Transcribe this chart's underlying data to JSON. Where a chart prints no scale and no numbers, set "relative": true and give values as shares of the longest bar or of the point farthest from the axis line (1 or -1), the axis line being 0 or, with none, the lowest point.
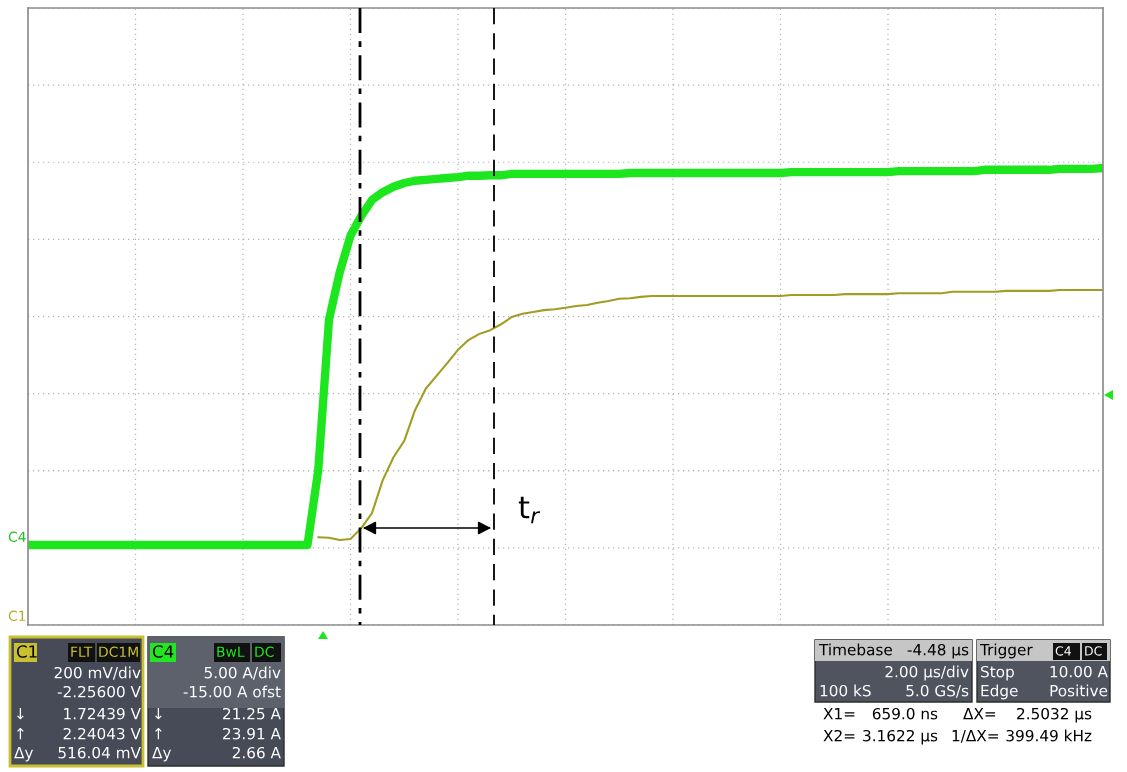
{
  "chart_data": {
    "type": "line",
    "relative": true,
    "grid": true,
    "categories": [
      null,
      null,
      null,
      null,
      null,
      null,
      null,
      null,
      null,
      null,
      null,
      null,
      null,
      null,
      null,
      null,
      null,
      null,
      null,
      null,
      null,
      null,
      null,
      null,
      null,
      null,
      null,
      null,
      null,
      null,
      null,
      null,
      null,
      null,
      null,
      null,
      null,
      null,
      null,
      null,
      null,
      null,
      null,
      null,
      null,
      null,
      null,
      null,
      null,
      null,
      null,
      null,
      null,
      null,
      null,
      null,
      null,
      null,
      null,
      null,
      null,
      null,
      null,
      null,
      null,
      null,
      null,
      null,
      null,
      null,
      null,
      null,
      null,
      null,
      null,
      null,
      null,
      null,
      null,
      null,
      null,
      null,
      null,
      null,
      null,
      null,
      null,
      null,
      null,
      null,
      null,
      null,
      null,
      null,
      null,
      null,
      null,
      null,
      null,
      null,
      null
    ],
    "series": [
      {
        "color": "#1ee61e",
        "values": [
          0.175,
          0.175,
          0.175,
          0.175,
          0.175,
          0.175,
          0.175,
          0.175,
          0.175,
          0.175,
          0.175,
          0.175,
          0.175,
          0.175,
          0.175,
          0.175,
          0.175,
          0.175,
          0.175,
          0.175,
          0.175,
          0.175,
          0.175,
          0.175,
          0.175,
          0.175,
          0.175,
          0.339,
          0.668,
          0.772,
          0.852,
          0.895,
          0.93,
          0.947,
          0.959,
          0.967,
          0.972,
          0.974,
          0.976,
          0.978,
          0.98,
          0.983,
          0.983,
          0.984,
          0.984,
          0.987,
          0.987,
          0.987,
          0.987,
          0.987,
          0.987,
          0.987,
          0.987,
          0.987,
          0.987,
          0.987,
          0.989,
          0.989,
          0.989,
          0.989,
          0.989,
          0.989,
          0.989,
          0.989,
          0.989,
          0.989,
          0.989,
          0.989,
          0.989,
          0.989,
          0.989,
          0.991,
          0.991,
          0.991,
          0.991,
          0.991,
          0.991,
          0.991,
          0.991,
          0.991,
          0.991,
          0.993,
          0.993,
          0.993,
          0.993,
          0.993,
          0.993,
          0.993,
          0.993,
          0.996,
          0.996,
          0.996,
          0.996,
          0.996,
          0.996,
          0.996,
          0.998,
          0.998,
          0.998,
          0.998,
          1
        ]
      },
      {
        "color": "#a39c22",
        "values": [
          null,
          null,
          null,
          null,
          null,
          null,
          null,
          null,
          null,
          null,
          null,
          null,
          null,
          null,
          null,
          null,
          null,
          null,
          null,
          null,
          null,
          null,
          null,
          null,
          null,
          null,
          null,
          0.192,
          0.191,
          0.186,
          0.188,
          0.212,
          0.245,
          0.317,
          0.367,
          0.403,
          0.47,
          0.517,
          0.545,
          0.573,
          0.602,
          0.624,
          0.637,
          0.645,
          0.658,
          0.674,
          0.681,
          0.685,
          0.689,
          0.691,
          0.694,
          0.698,
          0.7,
          0.705,
          0.709,
          0.714,
          0.715,
          0.718,
          0.72,
          0.72,
          0.72,
          0.72,
          0.72,
          0.72,
          0.72,
          0.72,
          0.72,
          0.72,
          0.72,
          0.72,
          0.72,
          0.722,
          0.722,
          0.722,
          0.722,
          0.722,
          0.724,
          0.724,
          0.724,
          0.724,
          0.724,
          0.726,
          0.726,
          0.726,
          0.726,
          0.726,
          0.729,
          0.729,
          0.729,
          0.729,
          0.729,
          0.731,
          0.731,
          0.731,
          0.731,
          0.731,
          0.733,
          0.733,
          0.733,
          0.733,
          0.733
        ]
      }
    ],
    "annotations": [
      "t$_{r}$",
      "C4",
      "C1",
      "C1",
      "FLT",
      "DC1M",
      "200 mV/div",
      "-2.25600 V",
      "↓",
      "1.72439 V",
      "↑",
      "2.24043 V",
      "Δy",
      "516.04 mV",
      "C4",
      "BwL",
      "DC",
      "5.00 A/div",
      "-15.00 A ofst",
      "↓",
      "21.25 A",
      "↑",
      "23.91 A",
      "Δy",
      "2.66 A",
      "Timebase",
      "-4.48 µs",
      "2.00 µs/div",
      "100 kS",
      "5.0 GS/s",
      "Trigger",
      "C4",
      "DC",
      "Stop",
      "10.00 A",
      "Edge",
      "Positive",
      "X1=",
      "659.0 ns",
      "ΔX=",
      "2.5032 µs",
      "X2=",
      "3.1622 µs",
      "1/ΔX=",
      "399.49 kHz"
    ]
  }
}
